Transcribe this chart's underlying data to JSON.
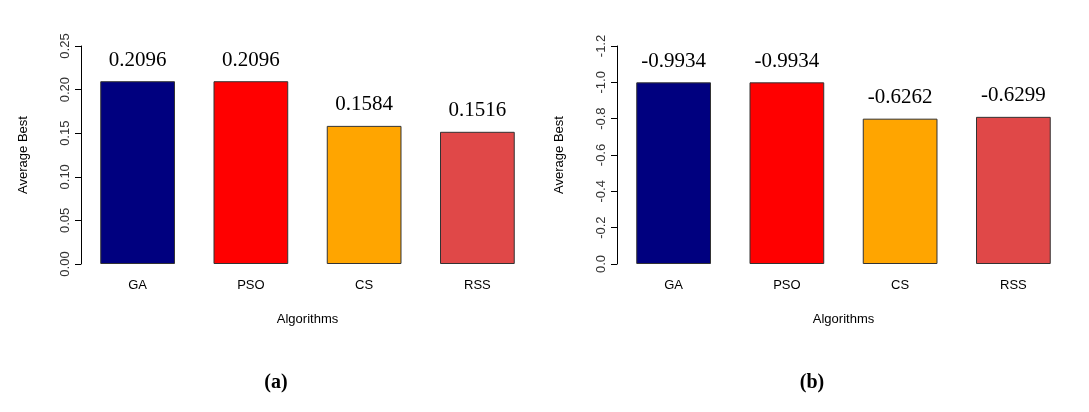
{
  "chart_data": [
    {
      "type": "bar",
      "xlabel": "Algorithms",
      "ylabel": "Average Best",
      "categories": [
        "GA",
        "PSO",
        "CS",
        "RSS"
      ],
      "values": [
        0.2096,
        0.2096,
        0.1584,
        0.1516
      ],
      "colors": [
        "#00007f",
        "#ff0000",
        "#ffa500",
        "#e04848"
      ],
      "ylim": [
        0,
        0.25
      ],
      "yticks": [
        {
          "value": 0,
          "label": "0.00"
        },
        0.05,
        {
          "value": 0.1,
          "label": "0.10"
        },
        0.15,
        {
          "value": 0.2,
          "label": "0.20"
        },
        0.25
      ],
      "data_labels": true,
      "grid": false,
      "annotations": [
        "(a)"
      ]
    },
    {
      "type": "bar",
      "xlabel": "Algorithms",
      "ylabel": "Average Best",
      "categories": [
        "GA",
        "PSO",
        "CS",
        "RSS"
      ],
      "values": [
        -1.0,
        -1.0,
        -0.8,
        -0.81
      ],
      "colors": [
        "#00007f",
        "#ff0000",
        "#ffa500",
        "#e04848"
      ],
      "ylim": [
        0,
        -1.2
      ],
      "yticks": [
        {
          "value": 0,
          "label": "0.0"
        },
        -0.2,
        -0.4,
        -0.6,
        -0.8,
        {
          "value": -1,
          "label": "-1.0"
        },
        -1.2
      ],
      "grid": false,
      "annotations": [
        "(b)",
        {
          "text": "-0.9934",
          "x": "GA",
          "y": -1.0
        },
        {
          "text": "-0.9934",
          "x": "PSO",
          "y": -1.0
        },
        {
          "text": "-0.6262",
          "x": "CS",
          "y": -0.8
        },
        {
          "text": "-0.6299",
          "x": "RSS",
          "y": -0.81
        }
      ]
    }
  ]
}
